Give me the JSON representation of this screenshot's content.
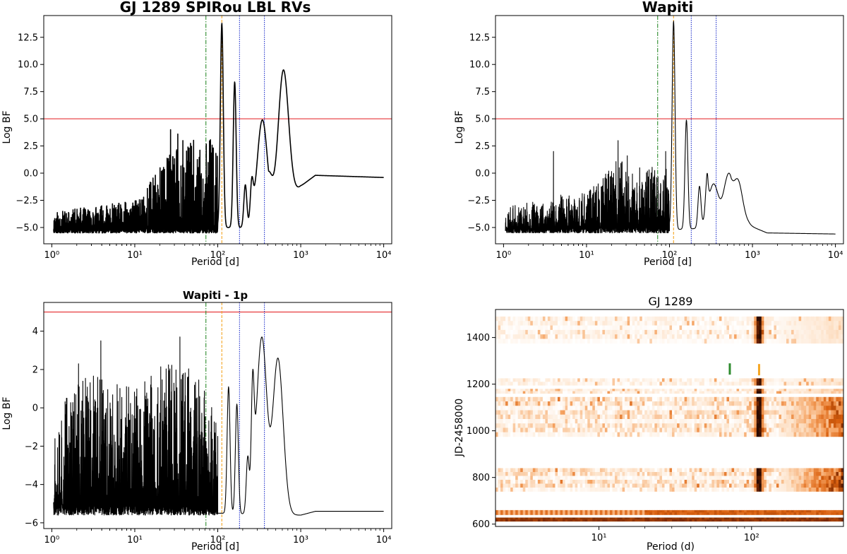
{
  "chart_data": [
    {
      "type": "line",
      "title": "GJ 1289 SPIRou LBL RVs",
      "xlabel": "Period [d]",
      "ylabel": "Log BF",
      "xscale": "log",
      "xlim": [
        0.8,
        12500
      ],
      "ylim": [
        -6.5,
        14.5
      ],
      "xticks": [
        1,
        10,
        100,
        1000,
        10000
      ],
      "xtick_labels": [
        "10⁰",
        "10¹",
        "10²",
        "10³",
        "10⁴"
      ],
      "yticks": [
        -5.0,
        -2.5,
        0.0,
        2.5,
        5.0,
        7.5,
        10.0,
        12.5
      ],
      "ytick_labels": [
        "−5.0",
        "−2.5",
        "0.0",
        "2.5",
        "5.0",
        "7.5",
        "10.0",
        "12.5"
      ],
      "threshold": 5.0,
      "threshold_color": "#e8494b",
      "vlines": [
        {
          "x": 72,
          "color": "#2e8b2e",
          "style": "dashdot"
        },
        {
          "x": 112,
          "color": "#f5a623",
          "style": "dashed"
        },
        {
          "x": 183,
          "color": "#2233cc",
          "style": "dotted"
        },
        {
          "x": 365,
          "color": "#2233cc",
          "style": "dotted"
        }
      ],
      "series": [
        {
          "noise_range": [
            1.05,
            100
          ],
          "noise_floor": -5.5,
          "noise_top": [
            [
              1,
              -3.6
            ],
            [
              5,
              -2.8
            ],
            [
              10,
              -2.6
            ],
            [
              20,
              0.8
            ],
            [
              40,
              3.0
            ],
            [
              80,
              3.2
            ]
          ],
          "peaks": [
            [
              27,
              4.0
            ],
            [
              33,
              3.6
            ],
            [
              38,
              3.0
            ],
            [
              112,
              13.8
            ],
            [
              160,
              8.4
            ],
            [
              215,
              -1.1
            ],
            [
              258,
              -1.2
            ],
            [
              345,
              4.9
            ],
            [
              385,
              0.0
            ],
            [
              620,
              9.5
            ]
          ],
          "baseline": [
            [
              110,
              -5.0
            ],
            [
              400,
              -5.0
            ],
            [
              1000,
              -1.2
            ],
            [
              1500,
              -0.2
            ],
            [
              10000,
              -0.4
            ]
          ]
        }
      ]
    },
    {
      "type": "line",
      "title": "Wapiti",
      "xlabel": "Period [d]",
      "ylabel": "Log BF",
      "xscale": "log",
      "xlim": [
        0.8,
        12500
      ],
      "ylim": [
        -6.5,
        14.5
      ],
      "xticks": [
        1,
        10,
        100,
        1000,
        10000
      ],
      "xtick_labels": [
        "10⁰",
        "10¹",
        "10²",
        "10³",
        "10⁴"
      ],
      "yticks": [
        -5.0,
        -2.5,
        0.0,
        2.5,
        5.0,
        7.5,
        10.0,
        12.5
      ],
      "ytick_labels": [
        "−5.0",
        "−2.5",
        "0.0",
        "2.5",
        "5.0",
        "7.5",
        "10.0",
        "12.5"
      ],
      "threshold": 5.0,
      "threshold_color": "#e8494b",
      "vlines": [
        {
          "x": 72,
          "color": "#2e8b2e",
          "style": "dashdot"
        },
        {
          "x": 112,
          "color": "#f5a623",
          "style": "dashed"
        },
        {
          "x": 183,
          "color": "#2233cc",
          "style": "dotted"
        },
        {
          "x": 365,
          "color": "#2233cc",
          "style": "dotted"
        }
      ],
      "series": [
        {
          "noise_range": [
            1.05,
            100
          ],
          "noise_floor": -5.5,
          "noise_top": [
            [
              1,
              -3.2
            ],
            [
              5,
              -2.0
            ],
            [
              10,
              -1.8
            ],
            [
              25,
              1.5
            ],
            [
              40,
              1.0
            ],
            [
              80,
              0.5
            ]
          ],
          "peaks": [
            [
              4,
              2.0
            ],
            [
              24,
              3.0
            ],
            [
              31,
              1.6
            ],
            [
              90,
              2.0
            ],
            [
              112,
              14.0
            ],
            [
              160,
              4.9
            ],
            [
              230,
              -1.2
            ],
            [
              285,
              0.0
            ],
            [
              340,
              -1.0
            ],
            [
              520,
              0.0
            ],
            [
              650,
              -0.5
            ]
          ],
          "baseline": [
            [
              110,
              -5.2
            ],
            [
              400,
              -5.0
            ],
            [
              900,
              -4.8
            ],
            [
              1500,
              -5.5
            ],
            [
              10000,
              -5.6
            ]
          ]
        }
      ]
    },
    {
      "type": "line",
      "title": "Wapiti - 1p",
      "xlabel": "Period [d]",
      "ylabel": "Log BF",
      "xscale": "log",
      "xlim": [
        0.8,
        12500
      ],
      "ylim": [
        -6.3,
        5.5
      ],
      "xticks": [
        1,
        10,
        100,
        1000,
        10000
      ],
      "xtick_labels": [
        "10⁰",
        "10¹",
        "10²",
        "10³",
        "10⁴"
      ],
      "yticks": [
        -6,
        -4,
        -2,
        0,
        2,
        4
      ],
      "ytick_labels": [
        "−6",
        "−4",
        "−2",
        "0",
        "2",
        "4"
      ],
      "threshold": 5.0,
      "threshold_color": "#e8494b",
      "vlines": [
        {
          "x": 72,
          "color": "#2e8b2e",
          "style": "dashdot"
        },
        {
          "x": 112,
          "color": "#f5a623",
          "style": "dashed"
        },
        {
          "x": 183,
          "color": "#2233cc",
          "style": "dotted"
        },
        {
          "x": 365,
          "color": "#2233cc",
          "style": "dotted"
        }
      ],
      "series": [
        {
          "noise_range": [
            1.05,
            100
          ],
          "noise_floor": -5.6,
          "noise_top": [
            [
              1,
              0.5
            ],
            [
              3,
              2.0
            ],
            [
              10,
              1.0
            ],
            [
              30,
              2.8
            ],
            [
              60,
              1.5
            ],
            [
              90,
              0.0
            ]
          ],
          "peaks": [
            [
              2.1,
              2.3
            ],
            [
              3.9,
              3.5
            ],
            [
              35,
              3.7
            ],
            [
              135,
              1.1
            ],
            [
              170,
              0.2
            ],
            [
              230,
              -2.7
            ],
            [
              265,
              1.5
            ],
            [
              340,
              3.7
            ],
            [
              530,
              2.6
            ]
          ],
          "baseline": [
            [
              110,
              -5.5
            ],
            [
              450,
              -5.6
            ],
            [
              1000,
              -5.6
            ],
            [
              1500,
              -5.4
            ],
            [
              10000,
              -5.4
            ]
          ]
        }
      ]
    },
    {
      "type": "heatmap",
      "title": "GJ 1289",
      "xlabel": "Period (d)",
      "ylabel": "JD-2458000",
      "xscale": "log",
      "xlim": [
        2.1,
        400
      ],
      "ylim": [
        590,
        1520
      ],
      "xticks": [
        10,
        100
      ],
      "xtick_labels": [
        "10¹",
        "10²"
      ],
      "yticks": [
        600,
        800,
        1000,
        1200,
        1400
      ],
      "ytick_labels": [
        "600",
        "800",
        "1000",
        "1200",
        "1400"
      ],
      "colormap": [
        "#ffffff",
        "#fde0c5",
        "#f5a362",
        "#d9600f",
        "#7a2800",
        "#2a0a00"
      ],
      "markers": [
        {
          "x": 72,
          "y": 1265,
          "color": "#2e8b2e"
        },
        {
          "x": 112,
          "y": 1262,
          "color": "#f5a623"
        }
      ],
      "bands": [
        {
          "range": [
            612,
            628
          ],
          "level": 0.75,
          "uniform": true
        },
        {
          "range": [
            640,
            660
          ],
          "level": 0.6,
          "uniform": true
        },
        {
          "range": [
            740,
            840
          ],
          "level": 0.3,
          "signal_period": 112,
          "late_level": 0.8
        },
        {
          "range": [
            975,
            1145
          ],
          "level": 0.3,
          "signal_period": 112,
          "late_level": 0.7
        },
        {
          "range": [
            1160,
            1180
          ],
          "level": 0.2,
          "signal_period": 112,
          "late_level": 0.3
        },
        {
          "range": [
            1195,
            1225
          ],
          "level": 0.15,
          "signal_period": 112,
          "late_level": 0.2
        },
        {
          "range": [
            1375,
            1490
          ],
          "level": 0.15,
          "signal_period": 112,
          "late_level": 0.2
        }
      ]
    }
  ]
}
